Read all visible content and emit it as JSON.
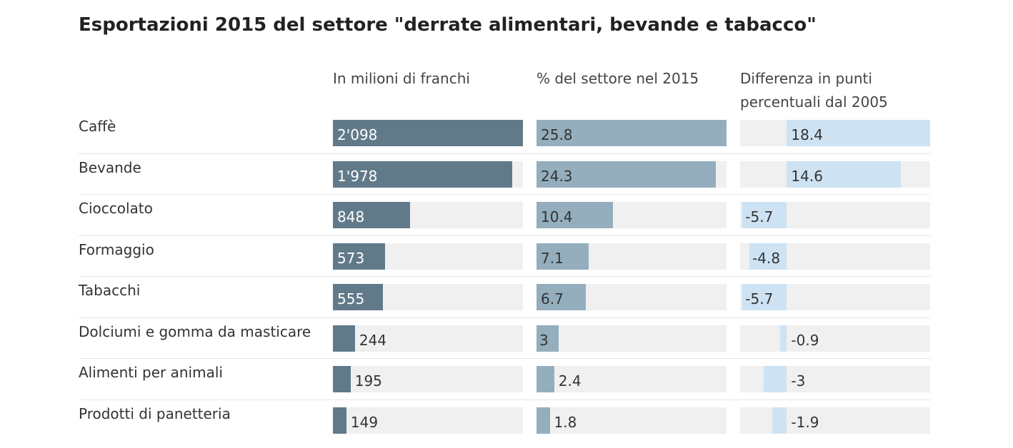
{
  "chart_data": {
    "type": "table",
    "title": "Esportazioni 2015 del settore \"derrate alimentari, bevande e tabacco\"",
    "columns": [
      {
        "key": "milioni",
        "label": "In milioni di franchi",
        "color": "#617a8a"
      },
      {
        "key": "percentuale",
        "label": "% del settore nel 2015",
        "color": "#94aebd"
      },
      {
        "key": "differenza",
        "label": "Differenza in punti percentuali dal 2005",
        "color": "#cde3f4"
      }
    ],
    "track_color": "#f0f0f0",
    "rows": [
      {
        "label": "Caffè",
        "milioni": 2098,
        "milioni_text": "2'098",
        "percentuale": 25.8,
        "percentuale_text": "25.8",
        "differenza": 18.4,
        "differenza_text": "18.4"
      },
      {
        "label": "Bevande",
        "milioni": 1978,
        "milioni_text": "1'978",
        "percentuale": 24.3,
        "percentuale_text": "24.3",
        "differenza": 14.6,
        "differenza_text": "14.6"
      },
      {
        "label": "Cioccolato",
        "milioni": 848,
        "milioni_text": "848",
        "percentuale": 10.4,
        "percentuale_text": "10.4",
        "differenza": -5.7,
        "differenza_text": "-5.7"
      },
      {
        "label": "Formaggio",
        "milioni": 573,
        "milioni_text": "573",
        "percentuale": 7.1,
        "percentuale_text": "7.1",
        "differenza": -4.8,
        "differenza_text": "-4.8"
      },
      {
        "label": "Tabacchi",
        "milioni": 555,
        "milioni_text": "555",
        "percentuale": 6.7,
        "percentuale_text": "6.7",
        "differenza": -5.7,
        "differenza_text": "-5.7"
      },
      {
        "label": "Dolciumi e gomma da masticare",
        "milioni": 244,
        "milioni_text": "244",
        "percentuale": 3,
        "percentuale_text": "3",
        "differenza": -0.9,
        "differenza_text": "-0.9"
      },
      {
        "label": "Alimenti per animali",
        "milioni": 195,
        "milioni_text": "195",
        "percentuale": 2.4,
        "percentuale_text": "2.4",
        "differenza": -3,
        "differenza_text": "-3"
      },
      {
        "label": "Prodotti di panetteria",
        "milioni": 149,
        "milioni_text": "149",
        "percentuale": 1.8,
        "percentuale_text": "1.8",
        "differenza": -1.9,
        "differenza_text": "-1.9"
      }
    ]
  }
}
